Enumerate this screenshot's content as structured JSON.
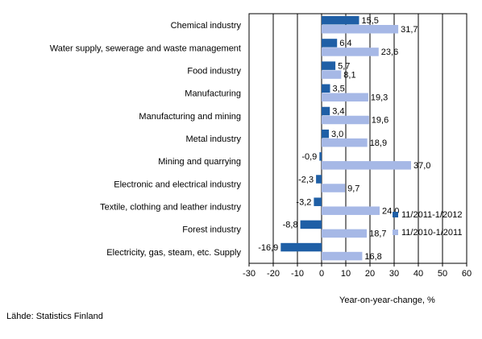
{
  "chart_data": {
    "type": "bar",
    "orientation": "horizontal",
    "categories": [
      "Chemical industry",
      "Water supply, sewerage and waste management",
      "Food industry",
      "Manufacturing",
      "Manufacturing and mining",
      "Metal industry",
      "Mining and quarrying",
      "Electronic and electrical industry",
      "Textile, clothing and leather industry",
      "Forest industry",
      "Electricity, gas, steam, etc. Supply"
    ],
    "series": [
      {
        "name": "11/2011-1/2012",
        "color": "#1f5fa6",
        "values": [
          15.5,
          6.4,
          5.7,
          3.5,
          3.4,
          3.0,
          -0.9,
          -2.3,
          -3.2,
          -8.8,
          -16.9
        ],
        "labels": [
          "15,5",
          "6,4",
          "5,7",
          "3,5",
          "3,4",
          "3,0",
          "-0,9",
          "-2,3",
          "-3,2",
          "-8,8",
          "-16,9"
        ]
      },
      {
        "name": "11/2010-1/2011",
        "color": "#a6b8e6",
        "values": [
          31.7,
          23.6,
          8.1,
          19.3,
          19.6,
          18.9,
          37.0,
          9.7,
          24.0,
          18.7,
          16.8
        ],
        "labels": [
          "31,7",
          "23,6",
          "8,1",
          "19,3",
          "19,6",
          "18,9",
          "37,0",
          "9,7",
          "24,0",
          "18,7",
          "16,8"
        ]
      }
    ],
    "xlim": [
      -30,
      60
    ],
    "xticks": [
      -30,
      -20,
      -10,
      0,
      10,
      20,
      30,
      40,
      50,
      60
    ],
    "xlabel": "Year-on-year-change, %",
    "grid": true,
    "legend_position": "bottom-right"
  },
  "source": "Lähde: Statistics Finland"
}
